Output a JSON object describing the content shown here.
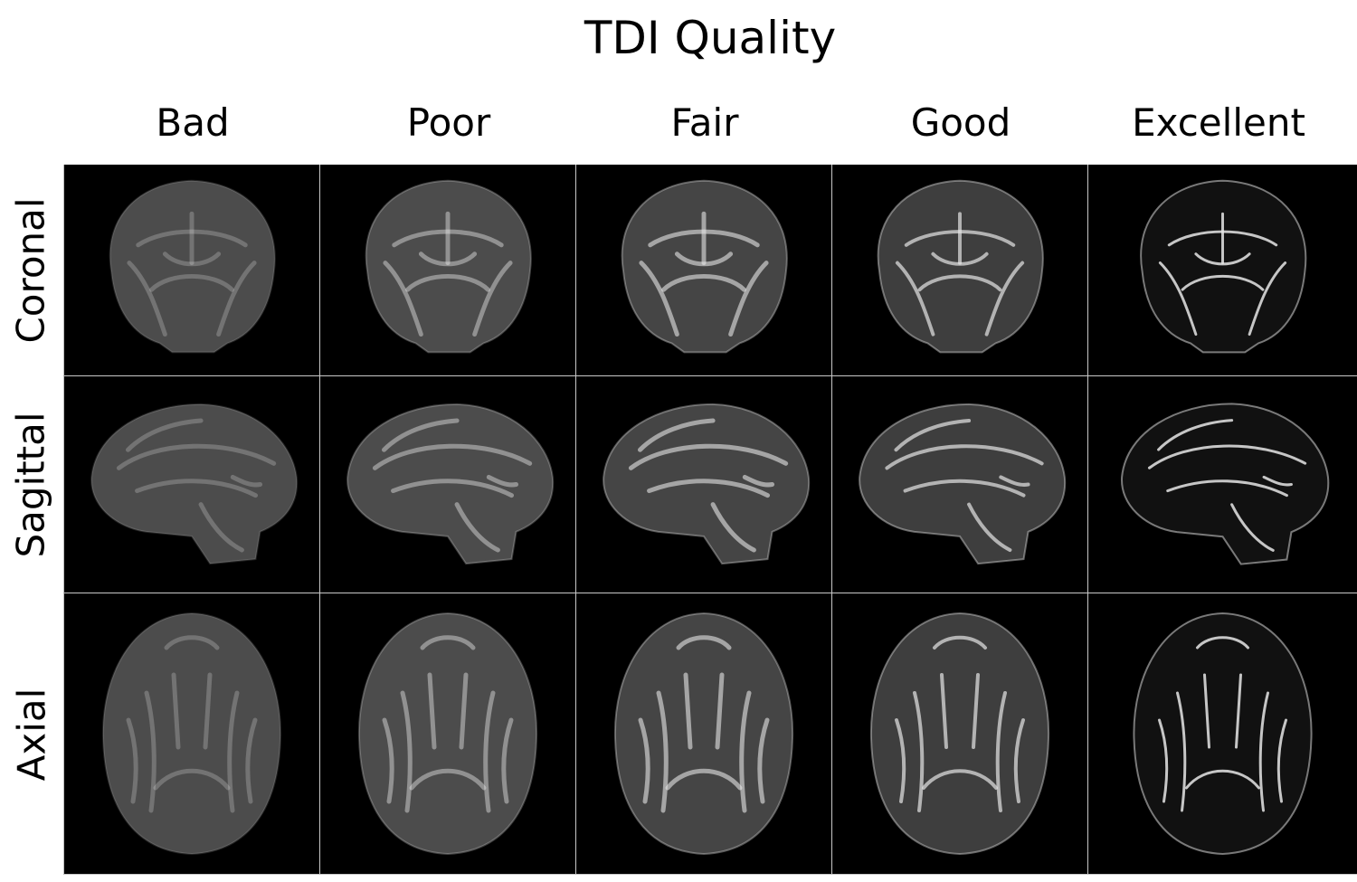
{
  "title": "TDI Quality",
  "columns": [
    {
      "label": "Bad",
      "level": 0
    },
    {
      "label": "Poor",
      "level": 1
    },
    {
      "label": "Fair",
      "level": 2
    },
    {
      "label": "Good",
      "level": 3
    },
    {
      "label": "Excellent",
      "level": 4
    }
  ],
  "rows": [
    {
      "label": "Coronal",
      "view": "coronal"
    },
    {
      "label": "Sagittal",
      "view": "sagittal"
    },
    {
      "label": "Axial",
      "view": "axial"
    }
  ],
  "colors": {
    "background": "#000000",
    "tissue": "#8a8a8a",
    "tract": "#e6e6e6",
    "grid_line": "#c8c8c8"
  }
}
